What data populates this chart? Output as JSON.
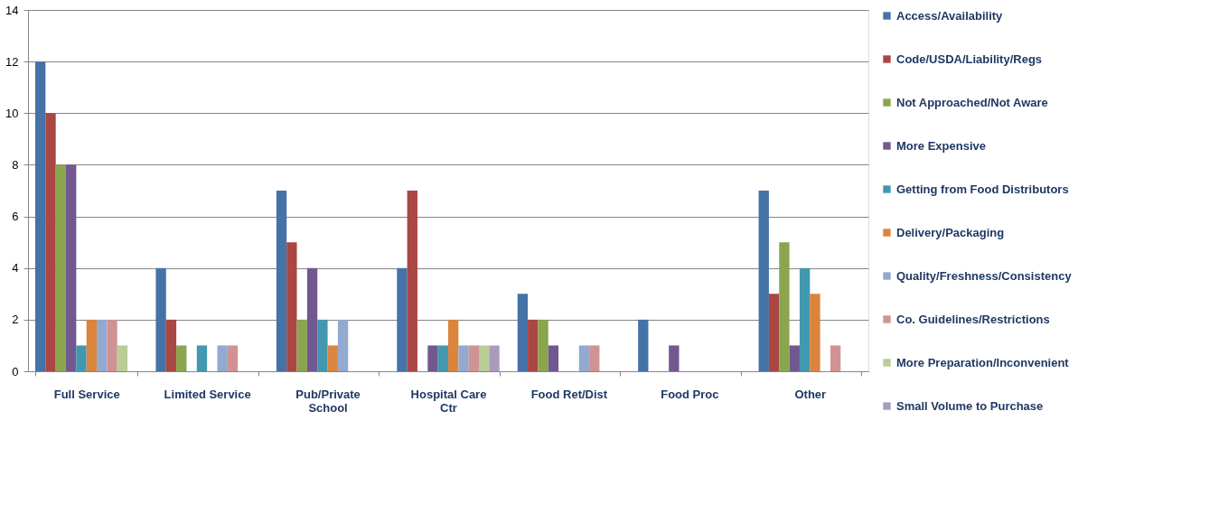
{
  "chart_data": {
    "type": "bar",
    "categories": [
      "Full Service",
      "Limited Service",
      "Pub/Private School",
      "Hospital Care Ctr",
      "Food Ret/Dist",
      "Food Proc",
      "Other"
    ],
    "series": [
      {
        "name": "Access/Availability",
        "color": "#4572a7",
        "values": [
          12,
          4,
          7,
          4,
          3,
          2,
          7
        ]
      },
      {
        "name": "Code/USDA/Liability/Regs",
        "color": "#aa4643",
        "values": [
          10,
          2,
          5,
          7,
          2,
          0,
          3
        ]
      },
      {
        "name": "Not Approached/Not Aware",
        "color": "#89a54e",
        "values": [
          8,
          1,
          2,
          0,
          2,
          0,
          5
        ]
      },
      {
        "name": "More Expensive",
        "color": "#71588f",
        "values": [
          8,
          0,
          4,
          1,
          1,
          1,
          1
        ]
      },
      {
        "name": "Getting from Food Distributors",
        "color": "#4198af",
        "values": [
          1,
          1,
          2,
          1,
          0,
          0,
          4
        ]
      },
      {
        "name": "Delivery/Packaging",
        "color": "#db843d",
        "values": [
          2,
          0,
          1,
          2,
          0,
          0,
          3
        ]
      },
      {
        "name": "Quality/Freshness/Consistency",
        "color": "#93a9cf",
        "values": [
          2,
          1,
          2,
          1,
          1,
          0,
          0
        ]
      },
      {
        "name": "Co. Guidelines/Restrictions",
        "color": "#d19392",
        "values": [
          2,
          1,
          0,
          1,
          1,
          0,
          1
        ]
      },
      {
        "name": "More Preparation/Inconvenient",
        "color": "#b9cd96",
        "values": [
          1,
          0,
          0,
          1,
          0,
          0,
          0
        ]
      },
      {
        "name": "Small Volume to Purchase",
        "color": "#a99bbd",
        "values": [
          0,
          0,
          0,
          1,
          0,
          0,
          0
        ]
      }
    ],
    "ylim": [
      0,
      14
    ],
    "yticks": [
      0,
      2,
      4,
      6,
      8,
      10,
      12,
      14
    ],
    "grid": "y",
    "legend": "right"
  }
}
